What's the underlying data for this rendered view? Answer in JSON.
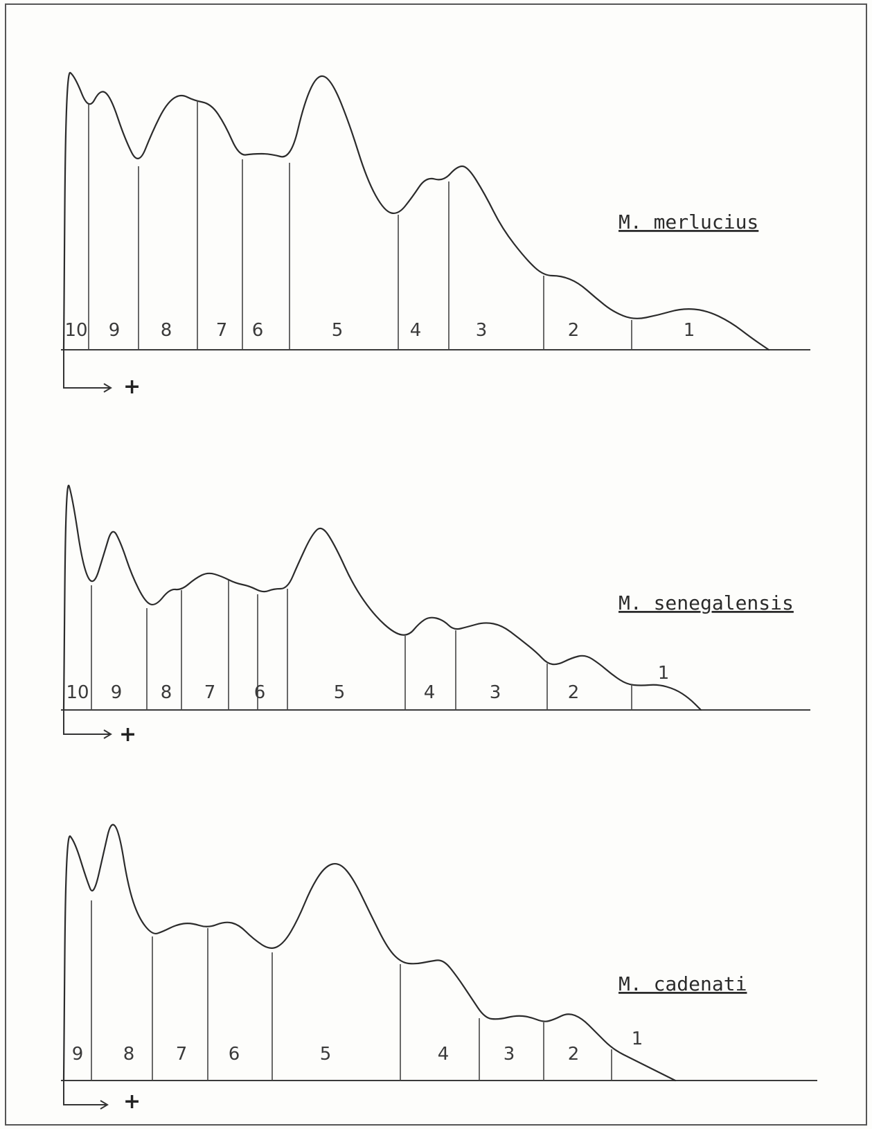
{
  "panels": [
    {
      "species": "M. merlucius",
      "direction_symbol": "+",
      "bands": [
        "10",
        "9",
        "8",
        "7",
        "6",
        "5",
        "4",
        "3",
        "2",
        "1"
      ]
    },
    {
      "species": "M. senegalensis",
      "direction_symbol": "+",
      "bands": [
        "10",
        "9",
        "8",
        "7",
        "6",
        "5",
        "4",
        "3",
        "2",
        "1"
      ]
    },
    {
      "species": "M. cadenati",
      "direction_symbol": "+",
      "bands": [
        "9",
        "8",
        "7",
        "6",
        "5",
        "4",
        "3",
        "2",
        "1"
      ]
    }
  ]
}
